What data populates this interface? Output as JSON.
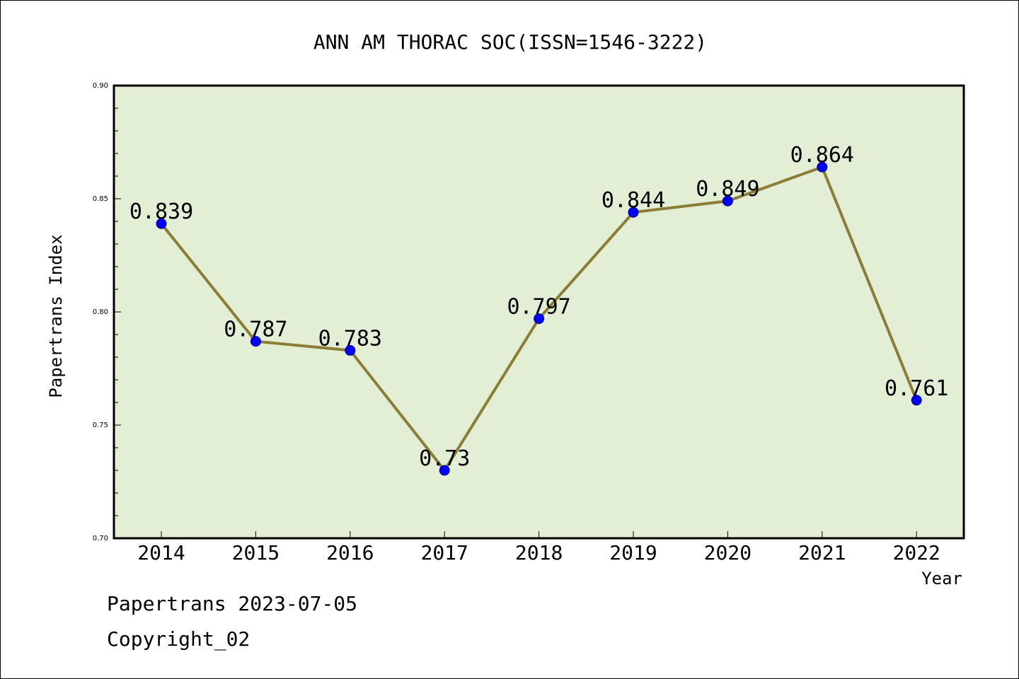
{
  "chart_data": {
    "type": "line",
    "title": "ANN AM THORAC SOC(ISSN=1546-3222)",
    "xlabel": "Year",
    "ylabel": "Papertrans Index",
    "categories": [
      "2014",
      "2015",
      "2016",
      "2017",
      "2018",
      "2019",
      "2020",
      "2021",
      "2022"
    ],
    "series": [
      {
        "values": [
          0.839,
          0.787,
          0.783,
          0.73,
          0.797,
          0.844,
          0.849,
          0.864,
          0.761
        ],
        "labels": [
          "0.839",
          "0.787",
          "0.783",
          "0.73",
          "0.797",
          "0.844",
          "0.849",
          "0.864",
          "0.761"
        ]
      }
    ],
    "ylim": [
      0.7,
      0.9
    ],
    "yticks": [
      "0.70",
      "0.75",
      "0.80",
      "0.85",
      "0.90"
    ],
    "grid": false,
    "legend": "none",
    "colors": {
      "plot_background": "#e2efd5",
      "line": "#8b7d35",
      "marker": "#0000ff"
    }
  },
  "footer": {
    "line1": "Papertrans 2023-07-05",
    "line2": "Copyright_02"
  }
}
